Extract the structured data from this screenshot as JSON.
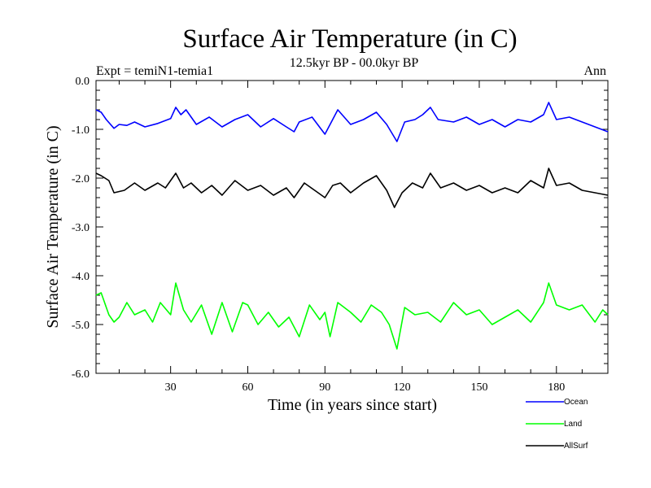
{
  "chart_data": {
    "type": "line",
    "title": "Surface Air Temperature (in C)",
    "subtitle": "12.5kyr BP - 00.0kyr BP",
    "experiment_label": "Expt = temiN1-temia1",
    "season_label": "Ann",
    "xlabel": "Time (in years since start)",
    "ylabel": "Surface Air Temperature (in C)",
    "xlim": [
      1,
      200
    ],
    "ylim": [
      -6.0,
      0.0
    ],
    "xticks": [
      30,
      60,
      90,
      120,
      150,
      180
    ],
    "yticks": [
      0.0,
      -1.0,
      -2.0,
      -3.0,
      -4.0,
      -5.0,
      -6.0
    ],
    "ytick_labels": [
      "0.0",
      "-1.0",
      "-2.0",
      "-3.0",
      "-4.0",
      "-5.0",
      "-6.0"
    ],
    "series": [
      {
        "name": "Ocean",
        "color": "#0000ff",
        "keypoints": [
          [
            1,
            -0.6
          ],
          [
            3,
            -0.65
          ],
          [
            5,
            -0.8
          ],
          [
            8,
            -0.98
          ],
          [
            10,
            -0.9
          ],
          [
            13,
            -0.92
          ],
          [
            16,
            -0.85
          ],
          [
            20,
            -0.95
          ],
          [
            25,
            -0.88
          ],
          [
            30,
            -0.78
          ],
          [
            32,
            -0.55
          ],
          [
            34,
            -0.7
          ],
          [
            36,
            -0.6
          ],
          [
            40,
            -0.9
          ],
          [
            45,
            -0.75
          ],
          [
            50,
            -0.95
          ],
          [
            55,
            -0.8
          ],
          [
            60,
            -0.7
          ],
          [
            65,
            -0.95
          ],
          [
            70,
            -0.78
          ],
          [
            75,
            -0.95
          ],
          [
            78,
            -1.05
          ],
          [
            80,
            -0.85
          ],
          [
            85,
            -0.75
          ],
          [
            90,
            -1.1
          ],
          [
            93,
            -0.8
          ],
          [
            95,
            -0.6
          ],
          [
            100,
            -0.9
          ],
          [
            105,
            -0.8
          ],
          [
            110,
            -0.65
          ],
          [
            114,
            -0.9
          ],
          [
            118,
            -1.25
          ],
          [
            121,
            -0.85
          ],
          [
            125,
            -0.8
          ],
          [
            128,
            -0.7
          ],
          [
            131,
            -0.55
          ],
          [
            134,
            -0.8
          ],
          [
            140,
            -0.85
          ],
          [
            145,
            -0.75
          ],
          [
            150,
            -0.9
          ],
          [
            155,
            -0.8
          ],
          [
            160,
            -0.95
          ],
          [
            165,
            -0.8
          ],
          [
            170,
            -0.85
          ],
          [
            175,
            -0.7
          ],
          [
            177,
            -0.45
          ],
          [
            180,
            -0.8
          ],
          [
            185,
            -0.75
          ],
          [
            190,
            -0.85
          ],
          [
            195,
            -0.95
          ],
          [
            200,
            -1.05
          ]
        ]
      },
      {
        "name": "Land",
        "color": "#00ff00",
        "keypoints": [
          [
            1,
            -4.4
          ],
          [
            3,
            -4.35
          ],
          [
            6,
            -4.8
          ],
          [
            8,
            -4.95
          ],
          [
            10,
            -4.85
          ],
          [
            13,
            -4.55
          ],
          [
            16,
            -4.8
          ],
          [
            20,
            -4.7
          ],
          [
            23,
            -4.95
          ],
          [
            26,
            -4.55
          ],
          [
            30,
            -4.8
          ],
          [
            32,
            -4.15
          ],
          [
            35,
            -4.7
          ],
          [
            38,
            -4.95
          ],
          [
            42,
            -4.6
          ],
          [
            46,
            -5.2
          ],
          [
            50,
            -4.55
          ],
          [
            54,
            -5.15
          ],
          [
            58,
            -4.55
          ],
          [
            60,
            -4.6
          ],
          [
            64,
            -5.0
          ],
          [
            68,
            -4.75
          ],
          [
            72,
            -5.05
          ],
          [
            76,
            -4.85
          ],
          [
            80,
            -5.25
          ],
          [
            84,
            -4.6
          ],
          [
            88,
            -4.9
          ],
          [
            90,
            -4.75
          ],
          [
            92,
            -5.25
          ],
          [
            95,
            -4.55
          ],
          [
            100,
            -4.75
          ],
          [
            104,
            -4.95
          ],
          [
            108,
            -4.6
          ],
          [
            112,
            -4.75
          ],
          [
            115,
            -5.0
          ],
          [
            118,
            -5.5
          ],
          [
            121,
            -4.65
          ],
          [
            125,
            -4.8
          ],
          [
            130,
            -4.75
          ],
          [
            135,
            -4.95
          ],
          [
            140,
            -4.55
          ],
          [
            145,
            -4.8
          ],
          [
            150,
            -4.7
          ],
          [
            155,
            -5.0
          ],
          [
            160,
            -4.85
          ],
          [
            165,
            -4.7
          ],
          [
            170,
            -4.95
          ],
          [
            175,
            -4.55
          ],
          [
            177,
            -4.15
          ],
          [
            180,
            -4.6
          ],
          [
            185,
            -4.7
          ],
          [
            190,
            -4.6
          ],
          [
            195,
            -4.95
          ],
          [
            198,
            -4.7
          ],
          [
            200,
            -4.8
          ]
        ]
      },
      {
        "name": "AllSurf",
        "color": "#000000",
        "keypoints": [
          [
            1,
            -1.9
          ],
          [
            3,
            -1.95
          ],
          [
            6,
            -2.05
          ],
          [
            8,
            -2.3
          ],
          [
            12,
            -2.25
          ],
          [
            16,
            -2.1
          ],
          [
            20,
            -2.25
          ],
          [
            25,
            -2.1
          ],
          [
            28,
            -2.2
          ],
          [
            32,
            -1.9
          ],
          [
            35,
            -2.2
          ],
          [
            38,
            -2.1
          ],
          [
            42,
            -2.3
          ],
          [
            46,
            -2.15
          ],
          [
            50,
            -2.35
          ],
          [
            55,
            -2.05
          ],
          [
            60,
            -2.25
          ],
          [
            65,
            -2.15
          ],
          [
            70,
            -2.35
          ],
          [
            75,
            -2.2
          ],
          [
            78,
            -2.4
          ],
          [
            82,
            -2.1
          ],
          [
            86,
            -2.25
          ],
          [
            90,
            -2.4
          ],
          [
            93,
            -2.15
          ],
          [
            96,
            -2.1
          ],
          [
            100,
            -2.3
          ],
          [
            105,
            -2.1
          ],
          [
            110,
            -1.95
          ],
          [
            114,
            -2.25
          ],
          [
            117,
            -2.6
          ],
          [
            120,
            -2.3
          ],
          [
            124,
            -2.1
          ],
          [
            128,
            -2.2
          ],
          [
            131,
            -1.9
          ],
          [
            135,
            -2.2
          ],
          [
            140,
            -2.1
          ],
          [
            145,
            -2.25
          ],
          [
            150,
            -2.15
          ],
          [
            155,
            -2.3
          ],
          [
            160,
            -2.2
          ],
          [
            165,
            -2.3
          ],
          [
            170,
            -2.05
          ],
          [
            175,
            -2.2
          ],
          [
            177,
            -1.8
          ],
          [
            180,
            -2.15
          ],
          [
            185,
            -2.1
          ],
          [
            190,
            -2.25
          ],
          [
            195,
            -2.3
          ],
          [
            200,
            -2.35
          ]
        ]
      }
    ],
    "legend": [
      {
        "label": "Ocean",
        "color": "#0000ff"
      },
      {
        "label": "Land",
        "color": "#00ff00"
      },
      {
        "label": "AllSurf",
        "color": "#000000"
      }
    ],
    "legend_position": "bottom-right",
    "grid": false
  }
}
